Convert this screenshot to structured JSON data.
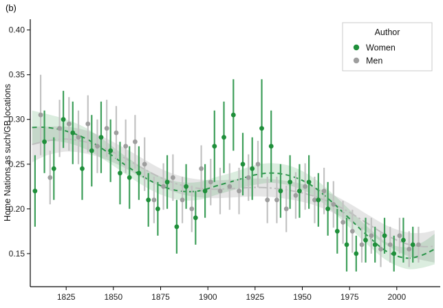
{
  "figure": {
    "panel_label": "(b)"
  },
  "legend": {
    "title": "Author",
    "items": [
      {
        "label": "Women",
        "color": "#1f8f3a"
      },
      {
        "label": "Men",
        "color": "#9e9e9e"
      }
    ]
  },
  "chart_data": {
    "type": "scatter",
    "title": "(b)",
    "xlabel": "",
    "ylabel": "Home Nations as such/GB locations",
    "xlim": [
      1806,
      2023
    ],
    "ylim": [
      0.113,
      0.412
    ],
    "x_ticks": [
      1825,
      1850,
      1875,
      1900,
      1925,
      1950,
      1975,
      2000
    ],
    "y_ticks": [
      0.15,
      0.2,
      0.25,
      0.3,
      0.35,
      0.4
    ],
    "grid": "off",
    "legend_position": "top-right-inside",
    "series": [
      {
        "name": "Men",
        "point_color": "#9e9e9e",
        "errorbar_color": "#c2c2c2",
        "line_color": "#bdbdbd",
        "band_fill": "rgba(160,160,160,0.28)",
        "dash": "12 4 3 4",
        "dodge": 1.5,
        "points": [
          [
            1810,
            0.305,
            0.045
          ],
          [
            1815,
            0.235,
            0.03
          ],
          [
            1820,
            0.29,
            0.032
          ],
          [
            1825,
            0.295,
            0.03
          ],
          [
            1830,
            0.28,
            0.03
          ],
          [
            1835,
            0.295,
            0.032
          ],
          [
            1840,
            0.27,
            0.03
          ],
          [
            1845,
            0.29,
            0.032
          ],
          [
            1850,
            0.285,
            0.03
          ],
          [
            1855,
            0.27,
            0.03
          ],
          [
            1860,
            0.275,
            0.03
          ],
          [
            1865,
            0.25,
            0.03
          ],
          [
            1870,
            0.21,
            0.026
          ],
          [
            1875,
            0.225,
            0.026
          ],
          [
            1880,
            0.235,
            0.026
          ],
          [
            1885,
            0.21,
            0.026
          ],
          [
            1890,
            0.2,
            0.026
          ],
          [
            1895,
            0.245,
            0.026
          ],
          [
            1900,
            0.23,
            0.026
          ],
          [
            1905,
            0.22,
            0.026
          ],
          [
            1910,
            0.225,
            0.026
          ],
          [
            1915,
            0.22,
            0.026
          ],
          [
            1920,
            0.235,
            0.026
          ],
          [
            1925,
            0.25,
            0.026
          ],
          [
            1930,
            0.21,
            0.026
          ],
          [
            1935,
            0.21,
            0.026
          ],
          [
            1940,
            0.2,
            0.026
          ],
          [
            1945,
            0.215,
            0.026
          ],
          [
            1950,
            0.225,
            0.026
          ],
          [
            1955,
            0.21,
            0.026
          ],
          [
            1960,
            0.22,
            0.026
          ],
          [
            1965,
            0.205,
            0.026
          ],
          [
            1970,
            0.185,
            0.024
          ],
          [
            1975,
            0.175,
            0.024
          ],
          [
            1980,
            0.16,
            0.02
          ],
          [
            1985,
            0.17,
            0.02
          ],
          [
            1990,
            0.155,
            0.02
          ],
          [
            1995,
            0.16,
            0.02
          ],
          [
            2000,
            0.17,
            0.02
          ],
          [
            2005,
            0.155,
            0.02
          ],
          [
            2010,
            0.16,
            0.02
          ]
        ],
        "trend": [
          [
            1807,
            0.272,
            0.252,
            0.292
          ],
          [
            1815,
            0.276,
            0.26,
            0.292
          ],
          [
            1825,
            0.278,
            0.264,
            0.292
          ],
          [
            1835,
            0.275,
            0.262,
            0.288
          ],
          [
            1845,
            0.268,
            0.256,
            0.28
          ],
          [
            1855,
            0.258,
            0.247,
            0.269
          ],
          [
            1865,
            0.246,
            0.235,
            0.257
          ],
          [
            1875,
            0.235,
            0.225,
            0.245
          ],
          [
            1885,
            0.227,
            0.217,
            0.237
          ],
          [
            1895,
            0.223,
            0.213,
            0.233
          ],
          [
            1905,
            0.222,
            0.212,
            0.232
          ],
          [
            1915,
            0.223,
            0.213,
            0.233
          ],
          [
            1925,
            0.224,
            0.214,
            0.234
          ],
          [
            1935,
            0.223,
            0.213,
            0.233
          ],
          [
            1945,
            0.22,
            0.21,
            0.23
          ],
          [
            1955,
            0.215,
            0.205,
            0.225
          ],
          [
            1965,
            0.207,
            0.197,
            0.217
          ],
          [
            1975,
            0.196,
            0.186,
            0.206
          ],
          [
            1985,
            0.183,
            0.173,
            0.193
          ],
          [
            1995,
            0.17,
            0.159,
            0.181
          ],
          [
            2005,
            0.161,
            0.148,
            0.174
          ],
          [
            2013,
            0.158,
            0.143,
            0.173
          ],
          [
            2020,
            0.158,
            0.14,
            0.176
          ]
        ]
      },
      {
        "name": "Women",
        "point_color": "#1f8f3a",
        "errorbar_color": "#3d9e59",
        "line_color": "#2a9449",
        "band_fill": "rgba(31,143,58,0.16)",
        "dash": "7 5",
        "dodge": -1.5,
        "points": [
          [
            1810,
            0.22,
            0.04
          ],
          [
            1815,
            0.275,
            0.035
          ],
          [
            1820,
            0.245,
            0.035
          ],
          [
            1825,
            0.3,
            0.032
          ],
          [
            1830,
            0.285,
            0.035
          ],
          [
            1835,
            0.245,
            0.035
          ],
          [
            1840,
            0.265,
            0.04
          ],
          [
            1845,
            0.28,
            0.04
          ],
          [
            1850,
            0.265,
            0.035
          ],
          [
            1855,
            0.24,
            0.035
          ],
          [
            1860,
            0.235,
            0.035
          ],
          [
            1865,
            0.24,
            0.03
          ],
          [
            1870,
            0.21,
            0.03
          ],
          [
            1875,
            0.2,
            0.03
          ],
          [
            1880,
            0.23,
            0.03
          ],
          [
            1885,
            0.18,
            0.03
          ],
          [
            1890,
            0.225,
            0.025
          ],
          [
            1895,
            0.19,
            0.03
          ],
          [
            1900,
            0.22,
            0.03
          ],
          [
            1905,
            0.27,
            0.04
          ],
          [
            1910,
            0.28,
            0.04
          ],
          [
            1915,
            0.305,
            0.04
          ],
          [
            1920,
            0.25,
            0.035
          ],
          [
            1925,
            0.245,
            0.035
          ],
          [
            1930,
            0.29,
            0.055
          ],
          [
            1935,
            0.27,
            0.04
          ],
          [
            1940,
            0.22,
            0.03
          ],
          [
            1945,
            0.23,
            0.03
          ],
          [
            1950,
            0.22,
            0.03
          ],
          [
            1955,
            0.23,
            0.03
          ],
          [
            1960,
            0.21,
            0.03
          ],
          [
            1965,
            0.2,
            0.03
          ],
          [
            1970,
            0.175,
            0.025
          ],
          [
            1975,
            0.16,
            0.03
          ],
          [
            1980,
            0.15,
            0.02
          ],
          [
            1985,
            0.165,
            0.025
          ],
          [
            1990,
            0.16,
            0.02
          ],
          [
            1995,
            0.17,
            0.02
          ],
          [
            2000,
            0.15,
            0.02
          ],
          [
            2005,
            0.165,
            0.025
          ],
          [
            2010,
            0.16,
            0.02
          ]
        ],
        "trend": [
          [
            1807,
            0.291,
            0.272,
            0.31
          ],
          [
            1815,
            0.291,
            0.276,
            0.306
          ],
          [
            1825,
            0.287,
            0.274,
            0.3
          ],
          [
            1835,
            0.279,
            0.267,
            0.291
          ],
          [
            1845,
            0.266,
            0.255,
            0.277
          ],
          [
            1855,
            0.251,
            0.241,
            0.261
          ],
          [
            1865,
            0.237,
            0.227,
            0.247
          ],
          [
            1875,
            0.226,
            0.216,
            0.236
          ],
          [
            1885,
            0.22,
            0.21,
            0.23
          ],
          [
            1895,
            0.22,
            0.21,
            0.23
          ],
          [
            1905,
            0.226,
            0.216,
            0.236
          ],
          [
            1915,
            0.232,
            0.222,
            0.242
          ],
          [
            1925,
            0.238,
            0.227,
            0.249
          ],
          [
            1935,
            0.24,
            0.229,
            0.251
          ],
          [
            1945,
            0.236,
            0.225,
            0.247
          ],
          [
            1955,
            0.226,
            0.216,
            0.236
          ],
          [
            1965,
            0.209,
            0.199,
            0.219
          ],
          [
            1975,
            0.189,
            0.179,
            0.199
          ],
          [
            1985,
            0.169,
            0.159,
            0.179
          ],
          [
            1995,
            0.152,
            0.142,
            0.162
          ],
          [
            2005,
            0.145,
            0.133,
            0.157
          ],
          [
            2013,
            0.148,
            0.134,
            0.162
          ],
          [
            2020,
            0.155,
            0.138,
            0.172
          ]
        ]
      }
    ]
  }
}
